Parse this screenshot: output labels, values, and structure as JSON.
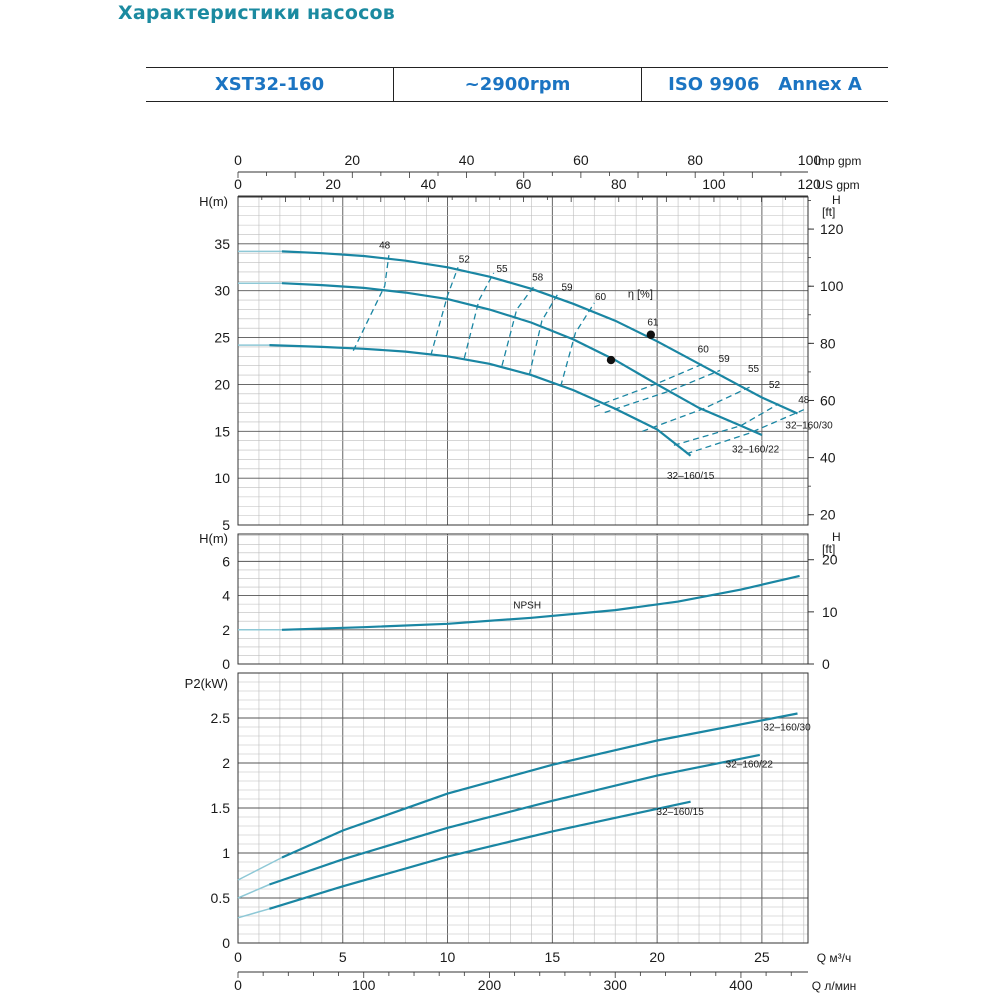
{
  "page": {
    "title": "Характеристики насосов"
  },
  "header": {
    "model": "XST32-160",
    "speed": "~2900rpm",
    "standard": "ISO 9906   Annex A"
  },
  "colors": {
    "curve": "#1a86a3",
    "curve_light": "#8ec8d6",
    "grid_major": "#555555",
    "grid_minor": "#bdbdbd",
    "title": "#1b8aa0",
    "header_text": "#1b74c2"
  },
  "chart_data": [
    {
      "type": "line",
      "id": "head",
      "ylabel": "H(m)",
      "ylabel_right": [
        "H",
        "[ft]"
      ],
      "xlim": [
        0,
        27.2
      ],
      "ylim": [
        5,
        40
      ],
      "yticks": [
        5,
        10,
        15,
        20,
        25,
        30,
        35
      ],
      "yticks_right": [
        20,
        40,
        60,
        80,
        100,
        120
      ],
      "eff_label": "η [%]",
      "series": [
        {
          "name": "32–160/30",
          "points": [
            [
              0,
              34.2
            ],
            [
              2.1,
              34.2
            ],
            [
              4,
              34.0
            ],
            [
              6,
              33.7
            ],
            [
              8,
              33.2
            ],
            [
              10,
              32.5
            ],
            [
              12,
              31.5
            ],
            [
              14,
              30.2
            ],
            [
              16,
              28.6
            ],
            [
              18,
              26.8
            ],
            [
              20,
              24.6
            ],
            [
              22,
              22.2
            ],
            [
              24,
              19.8
            ],
            [
              25,
              18.6
            ],
            [
              26.7,
              16.9
            ]
          ]
        },
        {
          "name": "32–160/22",
          "points": [
            [
              0,
              30.8
            ],
            [
              2.1,
              30.8
            ],
            [
              4,
              30.6
            ],
            [
              6,
              30.3
            ],
            [
              8,
              29.8
            ],
            [
              10,
              29.1
            ],
            [
              12,
              28.0
            ],
            [
              14,
              26.6
            ],
            [
              16,
              24.8
            ],
            [
              18,
              22.6
            ],
            [
              20,
              20.0
            ],
            [
              22,
              17.5
            ],
            [
              24,
              15.6
            ],
            [
              25,
              14.6
            ]
          ]
        },
        {
          "name": "32–160/15",
          "points": [
            [
              0,
              24.2
            ],
            [
              1.5,
              24.2
            ],
            [
              4,
              24.0
            ],
            [
              6,
              23.8
            ],
            [
              8,
              23.5
            ],
            [
              10,
              23.0
            ],
            [
              12,
              22.2
            ],
            [
              14,
              21.0
            ],
            [
              16,
              19.4
            ],
            [
              18,
              17.4
            ],
            [
              20,
              15.2
            ],
            [
              21.6,
              12.4
            ]
          ]
        }
      ],
      "efficiency_lines": [
        {
          "label": "48",
          "points": [
            [
              5.5,
              23.6
            ],
            [
              7.0,
              30.5
            ],
            [
              7.2,
              33.8
            ]
          ]
        },
        {
          "label": "52",
          "points": [
            [
              9.2,
              23.1
            ],
            [
              10.0,
              29.5
            ],
            [
              10.5,
              32.5
            ]
          ]
        },
        {
          "label": "55",
          "points": [
            [
              10.8,
              22.8
            ],
            [
              11.5,
              29.0
            ],
            [
              12.2,
              31.9
            ]
          ]
        },
        {
          "label": "58",
          "points": [
            [
              12.6,
              22.0
            ],
            [
              13.3,
              28.0
            ],
            [
              14.2,
              30.7
            ]
          ]
        },
        {
          "label": "59",
          "points": [
            [
              13.9,
              21.0
            ],
            [
              14.5,
              26.8
            ],
            [
              15.3,
              29.8
            ]
          ]
        },
        {
          "label": "60",
          "points": [
            [
              15.4,
              19.8
            ],
            [
              16.1,
              25.5
            ],
            [
              17.0,
              28.7
            ]
          ]
        },
        {
          "label": "60",
          "points": [
            [
              17.0,
              17.6
            ],
            [
              20.0,
              20.1
            ],
            [
              22.2,
              22.2
            ]
          ]
        },
        {
          "label": "59",
          "points": [
            [
              17.5,
              17.0
            ],
            [
              20.6,
              19.3
            ],
            [
              23.0,
              21.5
            ]
          ]
        },
        {
          "label": "55",
          "points": [
            [
              19.3,
              15.0
            ],
            [
              22.2,
              17.4
            ],
            [
              24.5,
              19.8
            ]
          ]
        },
        {
          "label": "52",
          "points": [
            [
              20.8,
              13.5
            ],
            [
              24.0,
              15.6
            ],
            [
              25.7,
              17.8
            ]
          ]
        },
        {
          "label": "48",
          "points": [
            [
              21.4,
              12.6
            ],
            [
              24.4,
              14.8
            ],
            [
              27.0,
              17.3
            ]
          ]
        }
      ],
      "efficiency_labels_top": [
        "48",
        "52",
        "55",
        "58",
        "59",
        "60"
      ],
      "efficiency_labels_right": [
        "61",
        "60",
        "59",
        "55",
        "52",
        "48"
      ],
      "bep_points": [
        [
          19.7,
          25.3
        ],
        [
          17.8,
          22.6
        ]
      ]
    },
    {
      "type": "line",
      "id": "npsh",
      "ylabel": "H(m)",
      "ylabel_right": [
        "H",
        "[ft]"
      ],
      "xlim": [
        0,
        27.2
      ],
      "ylim": [
        0,
        7.6
      ],
      "yticks": [
        0,
        2,
        4,
        6
      ],
      "yticks_right": [
        0,
        10,
        20
      ],
      "series": [
        {
          "name": "NPSH",
          "points": [
            [
              0,
              2.0
            ],
            [
              2.1,
              2.0
            ],
            [
              6,
              2.15
            ],
            [
              10,
              2.35
            ],
            [
              14,
              2.7
            ],
            [
              18,
              3.15
            ],
            [
              21,
              3.65
            ],
            [
              24,
              4.35
            ],
            [
              26.8,
              5.15
            ]
          ]
        }
      ]
    },
    {
      "type": "line",
      "id": "power",
      "ylabel": "P2(kW)",
      "xlabel_m3h": "Q  м³/ч",
      "xlabel_lmin": "Q  л/мин",
      "xlabel_imp": "Imp gpm",
      "xlabel_us": "US gpm",
      "xlim": [
        0,
        27.2
      ],
      "ylim": [
        0,
        3.0
      ],
      "yticks": [
        0,
        0.5,
        1,
        1.5,
        2,
        2.5
      ],
      "xticks_m3h": [
        0,
        5,
        10,
        15,
        20,
        25
      ],
      "xticks_lmin": [
        0,
        100,
        200,
        300,
        400
      ],
      "xticks_imp": [
        0,
        20,
        40,
        60,
        80,
        100
      ],
      "xticks_us": [
        0,
        20,
        40,
        60,
        80,
        100,
        120
      ],
      "series": [
        {
          "name": "32–160/30",
          "points": [
            [
              0,
              0.7
            ],
            [
              2.1,
              0.95
            ],
            [
              5,
              1.25
            ],
            [
              10,
              1.66
            ],
            [
              15,
              1.98
            ],
            [
              20,
              2.25
            ],
            [
              26.7,
              2.55
            ]
          ]
        },
        {
          "name": "32–160/22",
          "points": [
            [
              0,
              0.5
            ],
            [
              1.5,
              0.65
            ],
            [
              5,
              0.93
            ],
            [
              10,
              1.28
            ],
            [
              15,
              1.58
            ],
            [
              20,
              1.86
            ],
            [
              24.9,
              2.09
            ]
          ]
        },
        {
          "name": "32–160/15",
          "points": [
            [
              0,
              0.28
            ],
            [
              1.5,
              0.38
            ],
            [
              5,
              0.63
            ],
            [
              10,
              0.96
            ],
            [
              15,
              1.24
            ],
            [
              21.6,
              1.57
            ]
          ]
        }
      ]
    }
  ]
}
